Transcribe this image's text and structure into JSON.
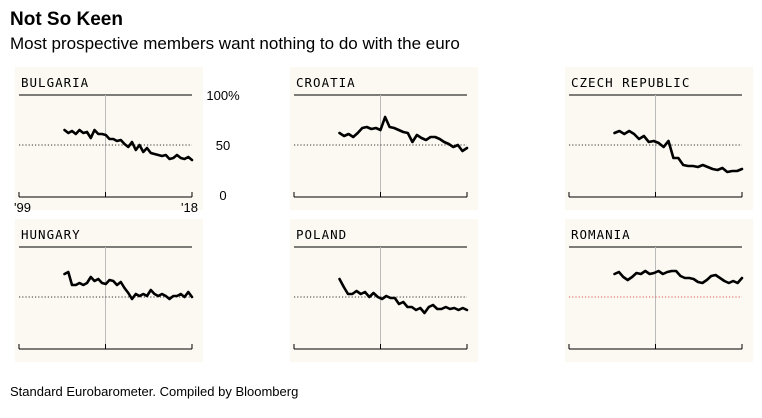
{
  "title": "Not So Keen",
  "subtitle": "Most prospective members want nothing to do with the euro",
  "footer": "Standard Eurobarometer. Compiled by Bloomberg",
  "chart_data": {
    "type": "line",
    "title": "Not So Keen",
    "subtitle": "Most prospective members want nothing to do with the euro",
    "x_range": [
      1999,
      2018
    ],
    "x_tick_labels": [
      "'99",
      "'18"
    ],
    "ylim": [
      0,
      100
    ],
    "y_ticks": [
      0,
      50,
      100
    ],
    "y_tick_labels": [
      "0",
      "50",
      "100%"
    ],
    "reference_line": 50,
    "panels": [
      {
        "name": "BULGARIA",
        "x_start": 2004,
        "values": [
          65,
          62,
          64,
          61,
          65,
          62,
          63,
          57,
          65,
          61,
          61,
          60,
          56,
          56,
          54,
          55,
          51,
          48,
          53,
          45,
          50,
          43,
          47,
          42,
          41,
          40,
          39,
          40,
          36,
          37,
          40,
          37,
          36,
          38,
          35
        ]
      },
      {
        "name": "CROATIA",
        "x_start": 2004,
        "values": [
          62,
          59,
          61,
          58,
          62,
          67,
          68,
          66,
          67,
          65,
          78,
          68,
          67,
          65,
          63,
          62,
          53,
          60,
          57,
          55,
          58,
          58,
          56,
          53,
          51,
          48,
          50,
          44,
          47
        ]
      },
      {
        "name": "CZECH REPUBLIC",
        "x_start": 2004,
        "values": [
          62,
          64,
          61,
          64,
          61,
          56,
          59,
          53,
          54,
          52,
          48,
          54,
          37,
          37,
          30,
          29,
          29,
          28,
          30,
          28,
          26,
          25,
          27,
          23,
          24,
          24,
          26
        ]
      },
      {
        "name": "HUNGARY",
        "x_start": 2004,
        "values": [
          73,
          75,
          62,
          62,
          64,
          62,
          64,
          70,
          66,
          68,
          64,
          63,
          67,
          66,
          62,
          65,
          59,
          54,
          48,
          53,
          51,
          53,
          51,
          57,
          53,
          51,
          53,
          51,
          48,
          51,
          51,
          53,
          50,
          55,
          50
        ]
      },
      {
        "name": "POLAND",
        "x_start": 2004,
        "values": [
          68,
          60,
          53,
          53,
          56,
          53,
          55,
          50,
          54,
          50,
          48,
          51,
          49,
          49,
          43,
          45,
          40,
          40,
          37,
          39,
          34,
          40,
          42,
          38,
          38,
          40,
          38,
          39,
          37,
          39,
          37
        ]
      },
      {
        "name": "ROMANIA",
        "x_start": 2004,
        "values": [
          73,
          75,
          70,
          67,
          70,
          74,
          73,
          76,
          73,
          74,
          76,
          73,
          75,
          76,
          76,
          71,
          69,
          69,
          68,
          65,
          64,
          67,
          71,
          72,
          69,
          66,
          64,
          66,
          64,
          69
        ]
      }
    ]
  }
}
